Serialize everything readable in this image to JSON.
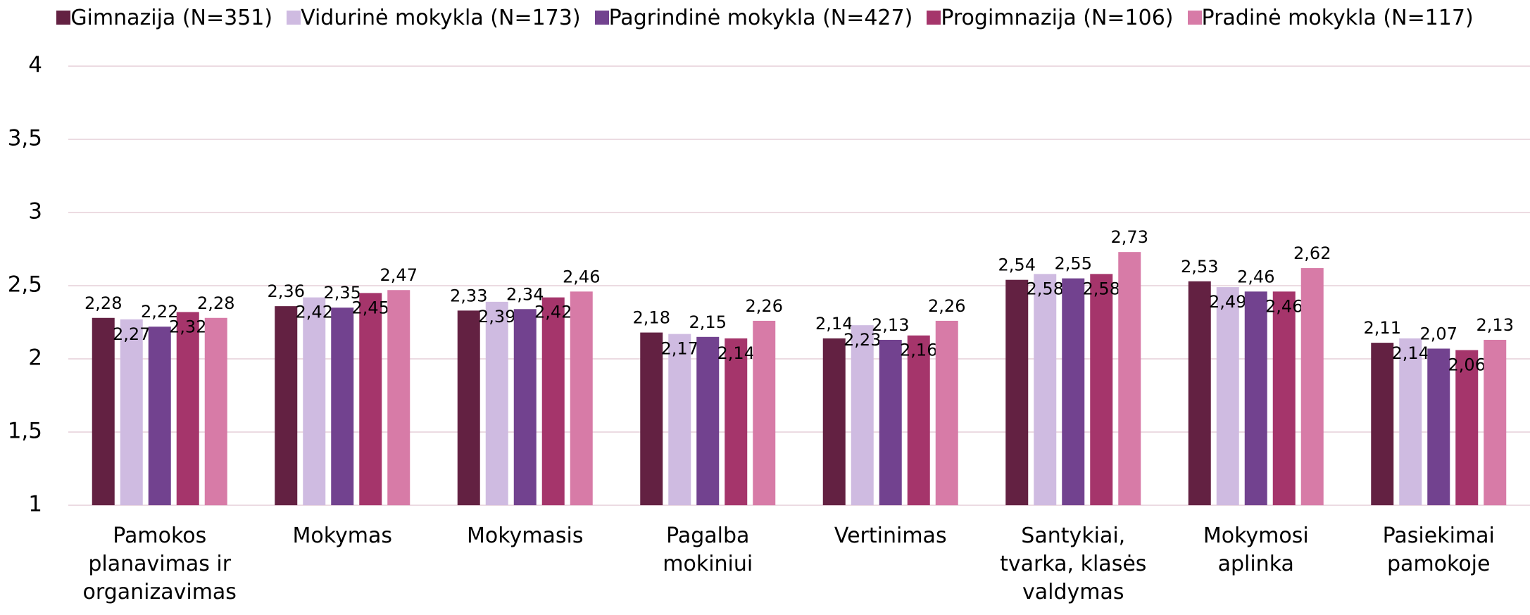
{
  "chart_data": {
    "type": "bar",
    "categories": [
      "Pamokos planavimas ir organizavimas",
      "Mokymas",
      "Mokymasis",
      "Pagalba mokiniui",
      "Vertinimas",
      "Santykiai, tvarka, klasės valdymas",
      "Mokymosi aplinka",
      "Pasiekimai pamokoje"
    ],
    "series": [
      {
        "name": "Gimnazija (N=351)",
        "color": "#632142",
        "values": [
          2.28,
          2.36,
          2.33,
          2.18,
          2.14,
          2.54,
          2.53,
          2.11
        ],
        "value_labels": [
          "2,28",
          "2,36",
          "2,33",
          "2,18",
          "2,14",
          "2,54",
          "2,53",
          "2,11"
        ]
      },
      {
        "name": "Vidurinė mokykla (N=173)",
        "color": "#cfbbe1",
        "values": [
          2.27,
          2.42,
          2.39,
          2.17,
          2.23,
          2.58,
          2.49,
          2.14
        ],
        "value_labels": [
          "2,27",
          "2,42",
          "2,39",
          "2,17",
          "2,23",
          "2,58",
          "2,49",
          "2,14"
        ]
      },
      {
        "name": "Pagrindinė mokykla (N=427)",
        "color": "#72428f",
        "values": [
          2.22,
          2.35,
          2.34,
          2.15,
          2.13,
          2.55,
          2.46,
          2.07
        ],
        "value_labels": [
          "2,22",
          "2,35",
          "2,34",
          "2,15",
          "2,13",
          "2,55",
          "2,46",
          "2,07"
        ]
      },
      {
        "name": "Progimnazija (N=106)",
        "color": "#a5356b",
        "values": [
          2.32,
          2.45,
          2.42,
          2.14,
          2.16,
          2.58,
          2.46,
          2.06
        ],
        "value_labels": [
          "2,32",
          "2,45",
          "2,42",
          "2,14",
          "2,16",
          "2,58",
          "2,46",
          "2,06"
        ]
      },
      {
        "name": "Pradinė mokykla (N=117)",
        "color": "#d77ba7",
        "values": [
          2.28,
          2.47,
          2.46,
          2.26,
          2.26,
          2.73,
          2.62,
          2.13
        ],
        "value_labels": [
          "2,28",
          "2,47",
          "2,46",
          "2,26",
          "2,26",
          "2,73",
          "2,62",
          "2,13"
        ]
      }
    ],
    "ylim": [
      1,
      4
    ],
    "yticks": [
      1,
      {
        "value": 1.5,
        "label": "1,5"
      },
      2,
      {
        "value": 2.5,
        "label": "2,5"
      },
      3,
      {
        "value": 3.5,
        "label": "3,5"
      },
      4
    ],
    "grid": true,
    "legend": "top"
  }
}
